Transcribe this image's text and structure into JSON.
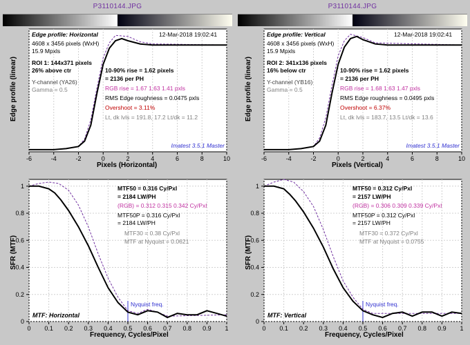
{
  "bg": "#c8c8c8",
  "titles": {
    "left": "P3110144.JPG",
    "right": "P3110144.JPG"
  },
  "brand": "Imatest 3.5.1 Master",
  "edge": {
    "ylabel": "Edge profile (linear)",
    "left": {
      "xlabel": "Pixels (Horizontal)",
      "hdr": "Edge profile: Horizontal",
      "date": "12-Mar-2018 19:02:41",
      "dim": "4608 x 3456 pixels (WxH)",
      "mp": "15.9 Mpxls",
      "roi": "ROI 1:  144x371 pixels",
      "pos": "26% above ctr",
      "chan": "Y-channel  (YA26)",
      "gamma": "Gamma = 0.5",
      "rise1": "10-90% rise = 1.62 pixels",
      "rise2": "         = 2136 per PH",
      "rgb": "RGB rise = 1.67  1.63  1.41 pxls",
      "rms": "RMS Edge roughness = 0.0475 pxls",
      "ovr": " Overshoot = 3.11%",
      "lvls": "Lt, dk lvls = 191.8, 17.2    Lt/dk = 11.2",
      "xlim": [
        -6,
        10
      ],
      "xticks": [
        -6,
        -4,
        -2,
        0,
        2,
        4,
        6,
        8,
        10
      ],
      "ylim": [
        0,
        1.15
      ],
      "black": [
        [
          -6,
          0.02
        ],
        [
          -5,
          0.02
        ],
        [
          -4,
          0.02
        ],
        [
          -3,
          0.03
        ],
        [
          -2,
          0.05
        ],
        [
          -1.5,
          0.1
        ],
        [
          -1,
          0.25
        ],
        [
          -0.5,
          0.55
        ],
        [
          0,
          0.82
        ],
        [
          0.5,
          0.97
        ],
        [
          1,
          1.04
        ],
        [
          1.5,
          1.06
        ],
        [
          2,
          1.04
        ],
        [
          3,
          1.01
        ],
        [
          4,
          1.0
        ],
        [
          6,
          1.0
        ],
        [
          10,
          1.0
        ]
      ],
      "dash": [
        [
          -6,
          0.02
        ],
        [
          -5,
          0.02
        ],
        [
          -4,
          0.02
        ],
        [
          -3,
          0.03
        ],
        [
          -2,
          0.05
        ],
        [
          -1.5,
          0.12
        ],
        [
          -1,
          0.3
        ],
        [
          -0.5,
          0.6
        ],
        [
          0,
          0.88
        ],
        [
          0.5,
          1.02
        ],
        [
          1,
          1.09
        ],
        [
          2,
          1.08
        ],
        [
          3,
          1.03
        ],
        [
          4,
          1.01
        ],
        [
          10,
          1.0
        ]
      ]
    },
    "right": {
      "xlabel": "Pixels (Vertical)",
      "hdr": "Edge profile: Vertical",
      "date": "12-Mar-2018 19:02:41",
      "dim": "4608 x 3456 pixels (WxH)",
      "mp": "15.9 Mpxls",
      "roi": "ROI 2:  341x136 pixels",
      "pos": "16% below ctr",
      "chan": "Y-channel  (YB16)",
      "gamma": "Gamma = 0.5",
      "rise1": "10-90% rise = 1.62 pixels",
      "rise2": "         = 2136 per PH",
      "rgb": "RGB rise = 1.68  1.63  1.47 pxls",
      "rms": "RMS Edge roughness = 0.0495 pxls",
      "ovr": " Overshoot = 6.37%",
      "lvls": "Lt, dk lvls = 183.7, 13.5    Lt/dk = 13.6",
      "xlim": [
        -6,
        10
      ],
      "xticks": [
        -6,
        -4,
        -2,
        0,
        2,
        4,
        6,
        8,
        10
      ],
      "ylim": [
        0,
        1.15
      ],
      "black": [
        [
          -6,
          0.02
        ],
        [
          -5,
          0.02
        ],
        [
          -4,
          0.02
        ],
        [
          -3,
          0.03
        ],
        [
          -2,
          0.05
        ],
        [
          -1.5,
          0.1
        ],
        [
          -1,
          0.25
        ],
        [
          -0.5,
          0.55
        ],
        [
          0,
          0.82
        ],
        [
          0.5,
          0.98
        ],
        [
          1,
          1.06
        ],
        [
          1.5,
          1.08
        ],
        [
          2,
          1.05
        ],
        [
          3,
          1.01
        ],
        [
          4,
          1.0
        ],
        [
          10,
          1.0
        ]
      ],
      "dash": [
        [
          -6,
          0.02
        ],
        [
          -5,
          0.02
        ],
        [
          -4,
          0.02
        ],
        [
          -3,
          0.03
        ],
        [
          -2,
          0.05
        ],
        [
          -1.5,
          0.13
        ],
        [
          -1,
          0.32
        ],
        [
          -0.5,
          0.62
        ],
        [
          0,
          0.9
        ],
        [
          0.5,
          1.04
        ],
        [
          1,
          1.1
        ],
        [
          2,
          1.07
        ],
        [
          3,
          1.02
        ],
        [
          10,
          1.0
        ]
      ]
    }
  },
  "mtf": {
    "ylabel": "SFR (MTF)",
    "left": {
      "xlabel": "Frequency, Cycles/Pixel",
      "corner": "MTF: Horizontal",
      "m50a": "MTF50 = 0.316 Cy/Pxl",
      "m50b": "= 2184 LW/PH",
      "rgb": "(RGB) = 0.312  0.315  0.342 Cy/Pxl",
      "m50pa": "MTF50P = 0.316 Cy/Pxl",
      "m50pb": "= 2184 LW/PH",
      "m30": "MTF30 = 0.38 Cy/Pxl",
      "nyq": "MTF at Nyquist = 0.0621",
      "nyqlabel": "Nyquist freq.",
      "xlim": [
        0,
        1
      ],
      "xticks": [
        0,
        0.1,
        0.2,
        0.3,
        0.4,
        0.5,
        0.6,
        0.7,
        0.8,
        0.9,
        1
      ],
      "ylim": [
        0,
        1.05
      ],
      "yticks": [
        0,
        0.2,
        0.4,
        0.6,
        0.8,
        1
      ],
      "black": [
        [
          0,
          1
        ],
        [
          0.05,
          1.0
        ],
        [
          0.1,
          0.98
        ],
        [
          0.13,
          0.95
        ],
        [
          0.16,
          0.9
        ],
        [
          0.2,
          0.82
        ],
        [
          0.25,
          0.7
        ],
        [
          0.3,
          0.56
        ],
        [
          0.35,
          0.4
        ],
        [
          0.4,
          0.25
        ],
        [
          0.45,
          0.14
        ],
        [
          0.5,
          0.07
        ],
        [
          0.55,
          0.05
        ],
        [
          0.6,
          0.08
        ],
        [
          0.65,
          0.07
        ],
        [
          0.7,
          0.03
        ],
        [
          0.75,
          0.06
        ],
        [
          0.8,
          0.05
        ],
        [
          0.85,
          0.05
        ],
        [
          0.9,
          0.08
        ],
        [
          0.95,
          0.06
        ],
        [
          1,
          0.04
        ]
      ],
      "dash": [
        [
          0,
          1
        ],
        [
          0.05,
          1.02
        ],
        [
          0.1,
          1.03
        ],
        [
          0.15,
          1.02
        ],
        [
          0.2,
          0.97
        ],
        [
          0.25,
          0.86
        ],
        [
          0.3,
          0.7
        ],
        [
          0.35,
          0.5
        ],
        [
          0.4,
          0.32
        ],
        [
          0.45,
          0.18
        ],
        [
          0.5,
          0.08
        ],
        [
          0.55,
          0.06
        ],
        [
          0.6,
          0.09
        ],
        [
          0.65,
          0.07
        ],
        [
          0.7,
          0.04
        ],
        [
          1,
          0.05
        ]
      ]
    },
    "right": {
      "xlabel": "Frequency, Cycles/Pixel",
      "corner": "MTF: Vertical",
      "m50a": "MTF50 = 0.312 Cy/Pxl",
      "m50b": "= 2157 LW/PH",
      "rgb": "(RGB) = 0.306  0.309  0.339 Cy/Pxl",
      "m50pa": "MTF50P = 0.312 Cy/Pxl",
      "m50pb": "= 2157 LW/PH",
      "m30": "MTF30 = 0.372 Cy/Pxl",
      "nyq": "MTF at Nyquist = 0.0755",
      "nyqlabel": "Nyquist freq.",
      "xlim": [
        0,
        1
      ],
      "xticks": [
        0,
        0.1,
        0.2,
        0.3,
        0.4,
        0.5,
        0.6,
        0.7,
        0.8,
        0.9,
        1
      ],
      "ylim": [
        0,
        1.05
      ],
      "yticks": [
        0,
        0.2,
        0.4,
        0.6,
        0.8,
        1
      ],
      "black": [
        [
          0,
          1
        ],
        [
          0.05,
          1.0
        ],
        [
          0.1,
          0.98
        ],
        [
          0.13,
          0.94
        ],
        [
          0.16,
          0.89
        ],
        [
          0.2,
          0.81
        ],
        [
          0.25,
          0.69
        ],
        [
          0.3,
          0.55
        ],
        [
          0.35,
          0.39
        ],
        [
          0.4,
          0.25
        ],
        [
          0.45,
          0.15
        ],
        [
          0.5,
          0.08
        ],
        [
          0.55,
          0.05
        ],
        [
          0.6,
          0.03
        ],
        [
          0.65,
          0.06
        ],
        [
          0.7,
          0.07
        ],
        [
          0.75,
          0.04
        ],
        [
          0.8,
          0.07
        ],
        [
          0.85,
          0.07
        ],
        [
          0.9,
          0.04
        ],
        [
          0.95,
          0.07
        ],
        [
          1,
          0.06
        ]
      ],
      "dash": [
        [
          0,
          1
        ],
        [
          0.05,
          1.03
        ],
        [
          0.1,
          1.05
        ],
        [
          0.15,
          1.03
        ],
        [
          0.2,
          0.96
        ],
        [
          0.25,
          0.85
        ],
        [
          0.3,
          0.68
        ],
        [
          0.35,
          0.48
        ],
        [
          0.4,
          0.3
        ],
        [
          0.45,
          0.18
        ],
        [
          0.5,
          0.09
        ],
        [
          0.55,
          0.06
        ],
        [
          1,
          0.06
        ]
      ]
    }
  },
  "colors": {
    "curve": "#000000",
    "dash": "#7030a0",
    "grid": "#d0d0d0",
    "nyquist": "#3030d0"
  }
}
